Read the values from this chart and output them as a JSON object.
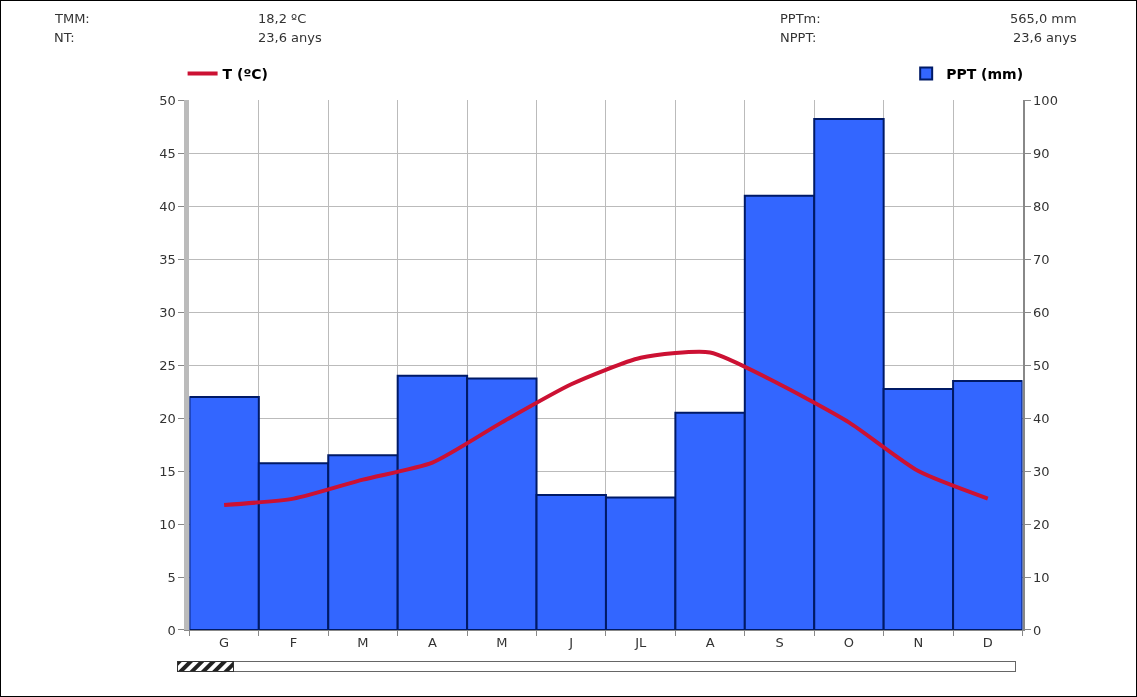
{
  "chart_data": {
    "type": "bar",
    "categories": [
      "G",
      "F",
      "M",
      "A",
      "M",
      "J",
      "JL",
      "A",
      "S",
      "O",
      "N",
      "D"
    ],
    "series": [
      {
        "name": "PPT (mm)",
        "axis": "y2",
        "color": "#3366ff",
        "values": [
          44,
          31.5,
          33,
          48,
          47.5,
          25.5,
          25,
          41,
          82,
          96.5,
          45.5,
          47
        ]
      },
      {
        "name": "T (ºC)",
        "type": "line",
        "color": "#cc1133",
        "values": [
          11.8,
          12.4,
          14.2,
          15.8,
          19.6,
          23.2,
          25.7,
          26.2,
          23.2,
          19.6,
          15,
          12.4
        ]
      }
    ],
    "ylim": [
      0,
      50
    ],
    "yticks": [
      0,
      5,
      10,
      15,
      20,
      25,
      30,
      35,
      40,
      45,
      50
    ],
    "y2lim": [
      0,
      100
    ],
    "y2ticks": [
      0,
      10,
      20,
      30,
      40,
      50,
      60,
      70,
      80,
      90,
      100
    ],
    "grid": true,
    "legend": "top",
    "marker": "none",
    "line_style": "solid",
    "annotations": [
      "TMM:",
      "18,2 ºC",
      "NT:",
      "23,6 anys",
      "PPTm:",
      "565,0 mm",
      "NPPT:",
      "23,6 anys"
    ]
  }
}
